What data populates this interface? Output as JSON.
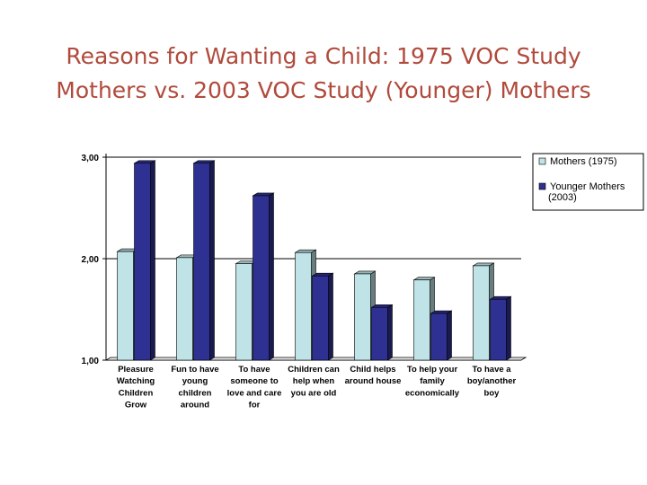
{
  "title": {
    "line1": "Reasons for Wanting a Child: 1975 VOC Study",
    "line2": "Mothers vs. 2003 VOC Study (Younger) Mothers"
  },
  "colors": {
    "title": "#b04a3c",
    "series_1975": "#bfe3e6",
    "series_2003": "#2e3192"
  },
  "chart_data": {
    "type": "bar",
    "categories": [
      [
        "Pleasure",
        "Watching",
        "Children",
        "Grow"
      ],
      [
        "Fun to have",
        "young",
        "children",
        "around"
      ],
      [
        "To have",
        "someone to",
        "love and care",
        "for"
      ],
      [
        "Children can",
        "help when",
        "you are old"
      ],
      [
        "Child helps",
        "around house"
      ],
      [
        "To help your",
        "family",
        "economically"
      ],
      [
        "To have a",
        "boy/another",
        "boy"
      ]
    ],
    "series": [
      {
        "name": "Mothers (1975)",
        "values": [
          2.07,
          2.01,
          1.95,
          2.06,
          1.85,
          1.79,
          1.93
        ]
      },
      {
        "name": "Younger Mothers (2003)",
        "values": [
          2.94,
          2.94,
          2.62,
          1.83,
          1.52,
          1.46,
          1.6
        ]
      }
    ],
    "ylim": [
      1,
      3
    ],
    "yticks": [
      "1,00",
      "2,00",
      "3,00"
    ],
    "ytick_values": [
      1,
      2,
      3
    ],
    "legend": {
      "position": "right",
      "entries": [
        {
          "lines": [
            "Mothers (1975)"
          ]
        },
        {
          "lines": [
            "Younger Mothers",
            "(2003)"
          ]
        }
      ]
    },
    "gridlines": "major-y"
  }
}
